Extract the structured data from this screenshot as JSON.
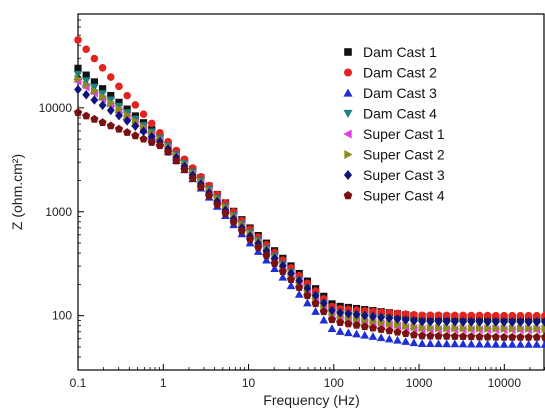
{
  "chart_data": {
    "type": "scatter",
    "title": "",
    "xlabel": "Frequency (Hz)",
    "ylabel": "Z (ohm.cm²)",
    "x_scale": "log",
    "y_scale": "log",
    "xlim": [
      0.1,
      30000
    ],
    "ylim": [
      30,
      80000
    ],
    "x_ticks": [
      0.1,
      1,
      10,
      100,
      1000,
      10000
    ],
    "x_tick_labels": [
      "0.1",
      "1",
      "10",
      "100",
      "1000",
      "10000"
    ],
    "y_ticks": [
      100,
      1000,
      10000
    ],
    "y_tick_labels": [
      "100",
      "1000",
      "10000"
    ],
    "grid": false,
    "legend_position": "top-right",
    "series": [
      {
        "name": "Dam Cast 1",
        "color": "#111111",
        "marker": "square",
        "points": [
          [
            0.1,
            24000
          ],
          [
            1,
            5000
          ],
          [
            10,
            720
          ],
          [
            100,
            125
          ],
          [
            1000,
            98
          ],
          [
            10000,
            96
          ],
          [
            30000,
            96
          ]
        ]
      },
      {
        "name": "Dam Cast 2",
        "color": "#e3231f",
        "marker": "circle",
        "points": [
          [
            0.1,
            45000
          ],
          [
            1,
            5300
          ],
          [
            10,
            700
          ],
          [
            100,
            118
          ],
          [
            1000,
            101
          ],
          [
            10000,
            100
          ],
          [
            30000,
            100
          ]
        ]
      },
      {
        "name": "Dam Cast 3",
        "color": "#1f2fd6",
        "marker": "triangle-up",
        "points": [
          [
            0.1,
            20000
          ],
          [
            1,
            4300
          ],
          [
            10,
            520
          ],
          [
            100,
            72
          ],
          [
            1000,
            54
          ],
          [
            10000,
            53
          ],
          [
            30000,
            53
          ]
        ]
      },
      {
        "name": "Dam Cast 4",
        "color": "#1e8080",
        "marker": "triangle-down",
        "points": [
          [
            0.1,
            21000
          ],
          [
            1,
            4800
          ],
          [
            10,
            650
          ],
          [
            100,
            105
          ],
          [
            1000,
            84
          ],
          [
            10000,
            83
          ],
          [
            30000,
            83
          ]
        ]
      },
      {
        "name": "Super Cast 1",
        "color": "#e23ee0",
        "marker": "triangle-left",
        "points": [
          [
            0.1,
            18000
          ],
          [
            1,
            4600
          ],
          [
            10,
            620
          ],
          [
            100,
            98
          ],
          [
            1000,
            74
          ],
          [
            10000,
            73
          ],
          [
            30000,
            73
          ]
        ]
      },
      {
        "name": "Super Cast 2",
        "color": "#8c8c18",
        "marker": "triangle-right",
        "points": [
          [
            0.1,
            19000
          ],
          [
            1,
            4700
          ],
          [
            10,
            640
          ],
          [
            100,
            100
          ],
          [
            1000,
            76
          ],
          [
            10000,
            75
          ],
          [
            30000,
            75
          ]
        ]
      },
      {
        "name": "Super Cast 3",
        "color": "#11137a",
        "marker": "diamond",
        "points": [
          [
            0.1,
            15000
          ],
          [
            1,
            4500
          ],
          [
            10,
            600
          ],
          [
            100,
            108
          ],
          [
            1000,
            88
          ],
          [
            10000,
            87
          ],
          [
            30000,
            87
          ]
        ]
      },
      {
        "name": "Super Cast 4",
        "color": "#7a1010",
        "marker": "pentagon",
        "points": [
          [
            0.1,
            9000
          ],
          [
            1,
            4200
          ],
          [
            10,
            560
          ],
          [
            100,
            88
          ],
          [
            1000,
            64
          ],
          [
            10000,
            62
          ],
          [
            30000,
            62
          ]
        ]
      }
    ]
  }
}
